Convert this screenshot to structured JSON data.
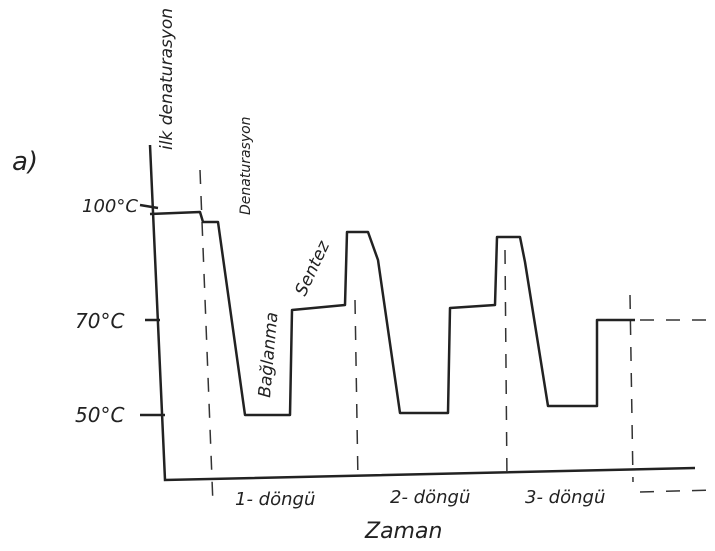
{
  "panel_label": "a)",
  "steps": {
    "initial_denaturation": "ilk denaturasyon",
    "denaturation": "Denaturasyon",
    "annealing": "Bağlanma",
    "synthesis": "Sentez"
  },
  "y_labels": [
    "100°C",
    "70°C",
    "50°C"
  ],
  "cycles": [
    "1- döngü",
    "2- döngü",
    "3- döngü"
  ],
  "x_label": "Zaman"
}
